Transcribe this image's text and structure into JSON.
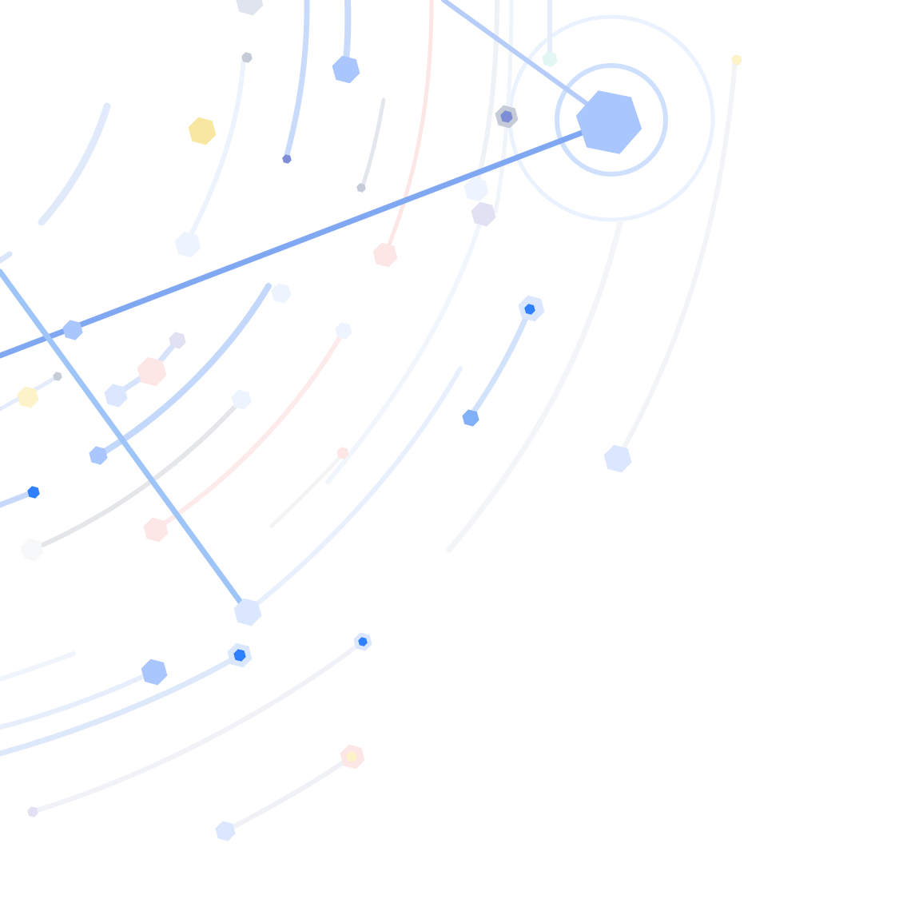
{
  "artwork": {
    "description_name": "abstract-network-graphic",
    "palette": {
      "background": "#ffffff",
      "blue_strong": "#2f80ff",
      "blue_mid": "#7aa7f5",
      "blue_soft": "#a9c6ff",
      "blue_pale": "#dbe7ff",
      "blue_faint": "#eef4ff",
      "yellow": "#f8e7a0",
      "yellow_pale": "#fdf3c9",
      "pink_pale": "#fde6e6",
      "lilac_pale": "#e2e0f3",
      "slate": "#c5ccd8",
      "navy_dot": "#7d8ed6",
      "mint": "#e2f7f3"
    },
    "icons": [
      "hexagon-node-icon",
      "ring-target-icon"
    ]
  }
}
